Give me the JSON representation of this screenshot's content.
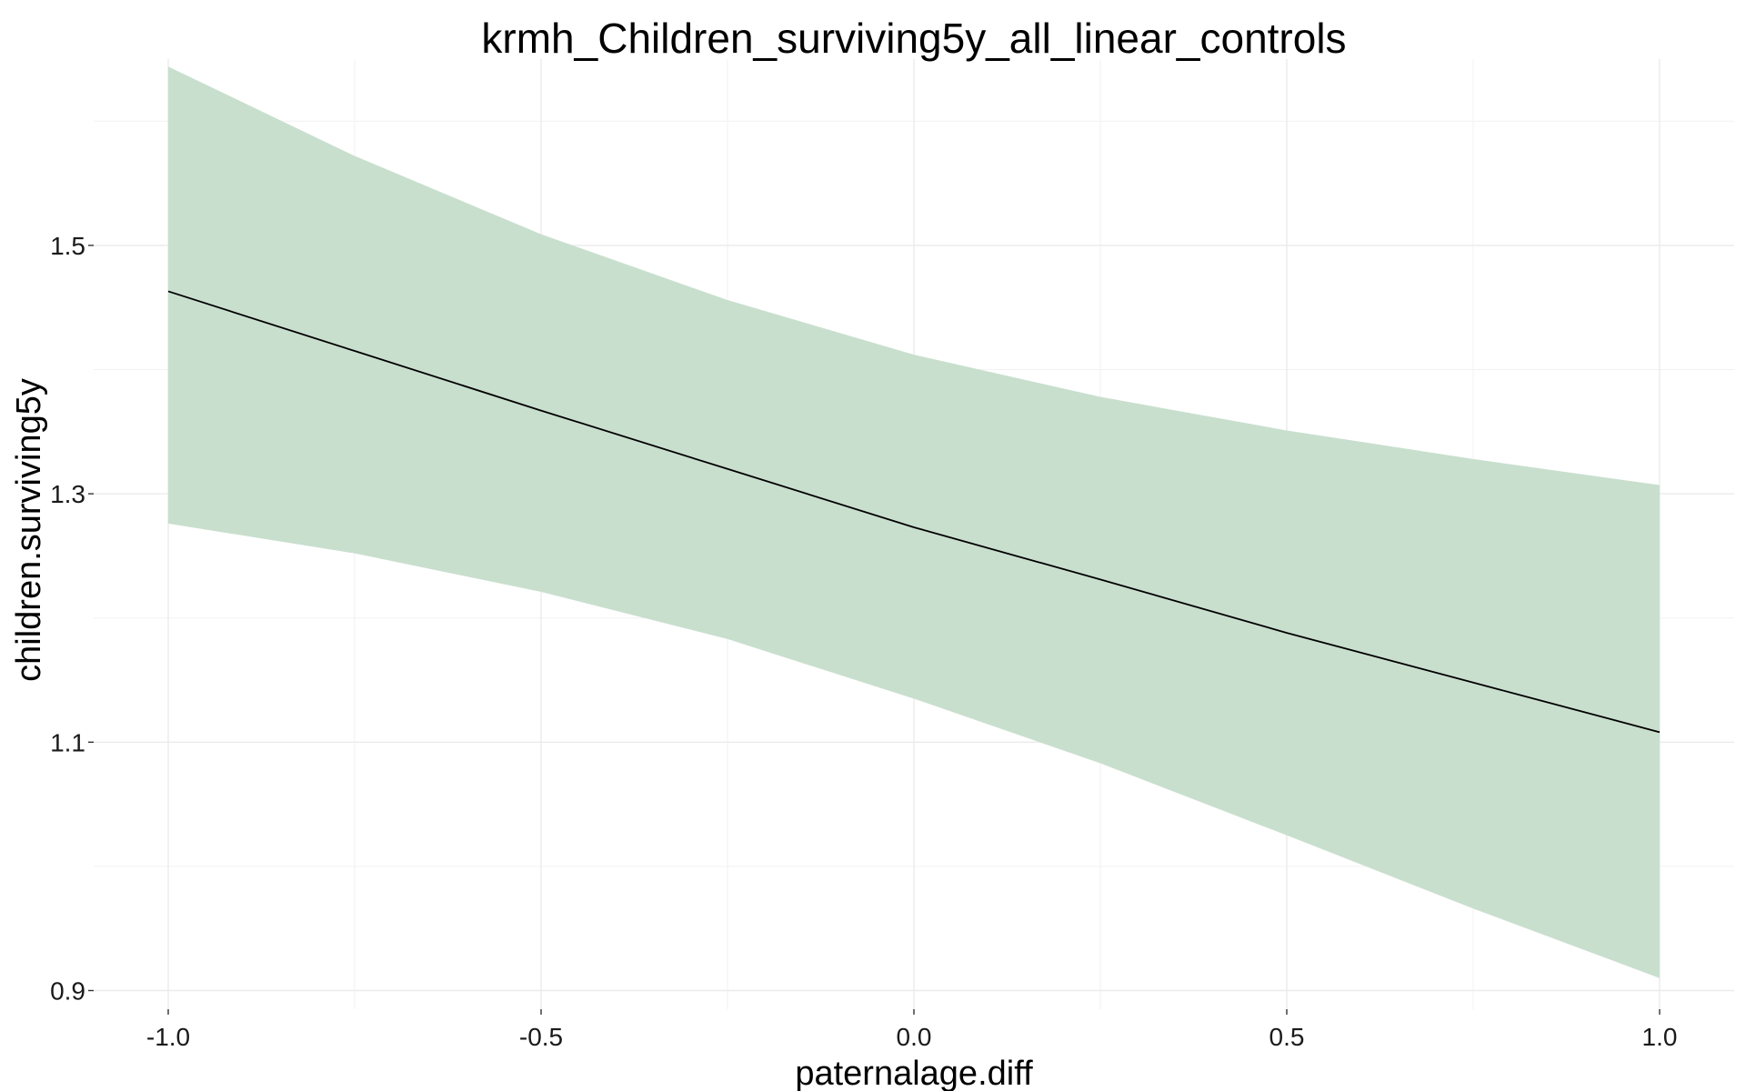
{
  "chart_data": {
    "type": "line",
    "title": "krmh_Children_surviving5y_all_linear_controls",
    "xlabel": "paternalage.diff",
    "ylabel": "children.surviving5y",
    "xlim": [
      -1.1,
      1.1
    ],
    "ylim": [
      0.885,
      1.65
    ],
    "x_ticks": [
      -1.0,
      -0.5,
      0.0,
      0.5,
      1.0
    ],
    "x_tick_labels": [
      "-1.0",
      "-0.5",
      "0.0",
      "0.5",
      "1.0"
    ],
    "y_ticks": [
      0.9,
      1.1,
      1.3,
      1.5
    ],
    "y_tick_labels": [
      "0.9",
      "1.1",
      "1.3",
      "1.5"
    ],
    "grid": true,
    "band_color": "#c9dfce",
    "line_color": "#000000",
    "series": [
      {
        "x": [
          -1.0,
          -0.75,
          -0.5,
          -0.25,
          0.0,
          0.25,
          0.5,
          0.75,
          1.0
        ],
        "y": [
          1.463,
          1.415,
          1.367,
          1.32,
          1.273,
          1.231,
          1.188,
          1.148,
          1.108
        ],
        "lower": [
          1.276,
          1.252,
          1.221,
          1.183,
          1.135,
          1.083,
          1.025,
          0.966,
          0.91
        ],
        "upper": [
          1.644,
          1.572,
          1.509,
          1.456,
          1.412,
          1.378,
          1.351,
          1.328,
          1.307
        ]
      }
    ]
  }
}
